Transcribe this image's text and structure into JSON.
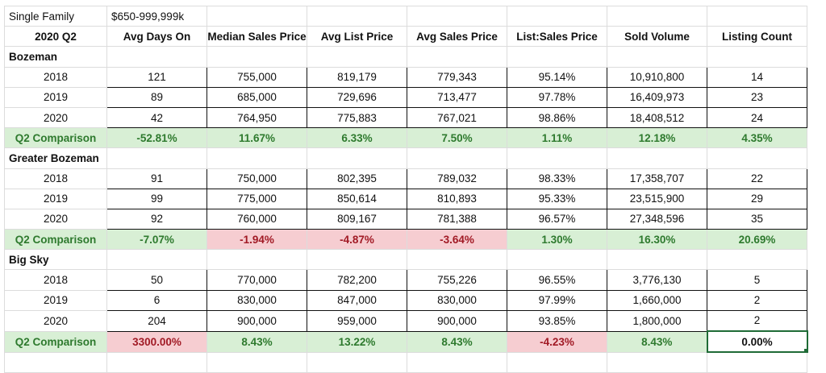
{
  "title_cell": "Single Family",
  "price_range": "$650-999,999k",
  "header_label": "2020 Q2",
  "columns": [
    "Avg Days On",
    "Median Sales Price",
    "Avg List Price",
    "Avg Sales Price",
    "List:Sales Price",
    "Sold Volume",
    "Listing Count"
  ],
  "regions": [
    {
      "name": "Bozeman",
      "rows": [
        {
          "year": "2018",
          "values": [
            "121",
            "755,000",
            "819,179",
            "779,343",
            "95.14%",
            "10,910,800",
            "14"
          ]
        },
        {
          "year": "2019",
          "values": [
            "89",
            "685,000",
            "729,696",
            "713,477",
            "97.78%",
            "16,409,973",
            "23"
          ]
        },
        {
          "year": "2020",
          "values": [
            "42",
            "764,950",
            "775,883",
            "767,021",
            "98.86%",
            "18,408,512",
            "24"
          ]
        }
      ],
      "comparison": {
        "label": "Q2 Comparison",
        "values": [
          "-52.81%",
          "11.67%",
          "6.33%",
          "7.50%",
          "1.11%",
          "12.18%",
          "4.35%"
        ],
        "status": [
          "pos",
          "pos",
          "pos",
          "pos",
          "pos",
          "pos",
          "pos"
        ]
      }
    },
    {
      "name": "Greater Bozeman",
      "rows": [
        {
          "year": "2018",
          "values": [
            "91",
            "750,000",
            "802,395",
            "789,032",
            "98.33%",
            "17,358,707",
            "22"
          ]
        },
        {
          "year": "2019",
          "values": [
            "99",
            "775,000",
            "850,614",
            "810,893",
            "95.33%",
            "23,515,900",
            "29"
          ]
        },
        {
          "year": "2020",
          "values": [
            "92",
            "760,000",
            "809,167",
            "781,388",
            "96.57%",
            "27,348,596",
            "35"
          ]
        }
      ],
      "comparison": {
        "label": "Q2 Comparison",
        "values": [
          "-7.07%",
          "-1.94%",
          "-4.87%",
          "-3.64%",
          "1.30%",
          "16.30%",
          "20.69%"
        ],
        "status": [
          "pos",
          "neg",
          "neg",
          "neg",
          "pos",
          "pos",
          "pos"
        ]
      }
    },
    {
      "name": "Big Sky",
      "rows": [
        {
          "year": "2018",
          "values": [
            "50",
            "770,000",
            "782,200",
            "755,226",
            "96.55%",
            "3,776,130",
            "5"
          ]
        },
        {
          "year": "2019",
          "values": [
            "6",
            "830,000",
            "847,000",
            "830,000",
            "97.99%",
            "1,660,000",
            "2"
          ]
        },
        {
          "year": "2020",
          "values": [
            "204",
            "900,000",
            "959,000",
            "900,000",
            "93.85%",
            "1,800,000",
            "2"
          ]
        }
      ],
      "comparison": {
        "label": "Q2 Comparison",
        "values": [
          "3300.00%",
          "8.43%",
          "13.22%",
          "8.43%",
          "-4.23%",
          "8.43%",
          "0.00%"
        ],
        "status": [
          "neg",
          "pos",
          "pos",
          "pos",
          "neg",
          "pos",
          "sel"
        ]
      }
    }
  ]
}
